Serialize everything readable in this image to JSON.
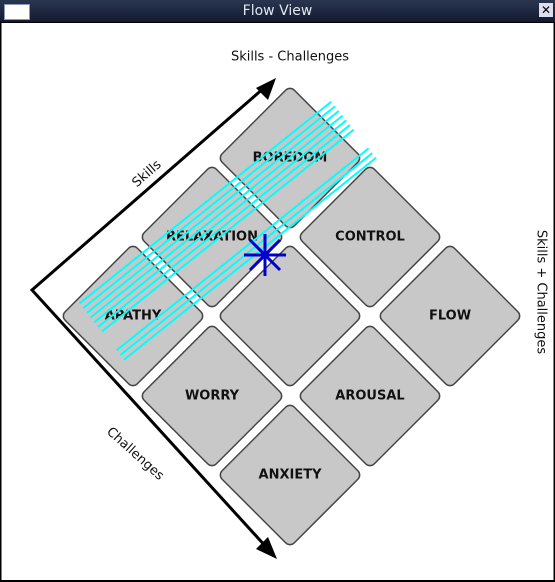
{
  "window": {
    "title": "Flow View"
  },
  "axes": {
    "top": "Skills - Challenges",
    "right": "Skills + Challenges",
    "skills": "Skills",
    "challenges": "Challenges"
  },
  "tiles": [
    "BOREDOM",
    "RELAXATION",
    "CONTROL",
    "APATHY",
    "FLOW",
    "WORRY",
    "AROUSAL",
    "ANXIETY"
  ]
}
